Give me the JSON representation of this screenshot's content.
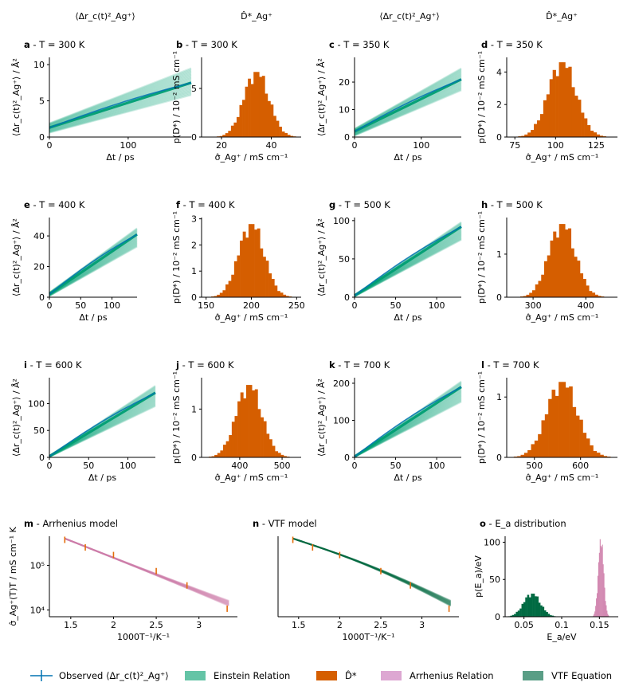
{
  "column_headers": [
    "⟨Δr_c(t)²_Ag⁺⟩",
    "D̂*_Ag⁺",
    "⟨Δr_c(t)²_Ag⁺⟩",
    "D̂*_Ag⁺"
  ],
  "colors": {
    "einstein": "#009e73",
    "observed": "#0072b2",
    "hist": "#d55e00",
    "arrhenius": "#cc79a7",
    "vtf": "#006a42",
    "arrhenius_point": "#e46c0a",
    "ea_vtf": "#006a42",
    "ea_arr": "#cc79a7"
  },
  "legend": {
    "observed": "Observed ⟨Δr_c(t)²_Ag⁺⟩",
    "einstein": "Einstein Relation",
    "dhat": "D̂*",
    "arrhenius": "Arrhenius Relation",
    "vtf": "VTF Equation"
  },
  "chart_data": [
    {
      "id": "a",
      "letter": "a",
      "title": " - T = 300 K",
      "type": "line",
      "xlabel": "Δt / ps",
      "ylabel": "⟨Δr_c(t)²_Ag⁺⟩ / Å²",
      "xlim": [
        0,
        180
      ],
      "ylim": [
        0,
        11
      ],
      "xticks": [
        0,
        100
      ],
      "yticks": [
        0,
        5,
        10
      ],
      "start": [
        1.3,
        0.6,
        1.9
      ],
      "end": [
        7.5,
        5.8,
        9.5
      ]
    },
    {
      "id": "b",
      "letter": "b",
      "title": " - T = 300 K",
      "type": "bar",
      "xlabel": "σ̂_Ag⁺ / mS cm⁻¹",
      "ylabel": "p(D*) / 10⁻² mS cm⁻¹",
      "xlim": [
        12,
        52
      ],
      "ylim": [
        0,
        8.2
      ],
      "xticks": [
        20,
        40
      ],
      "yticks": [
        0,
        5
      ],
      "center": 34,
      "sd": 5.0,
      "peak": 6.7
    },
    {
      "id": "c",
      "letter": "c",
      "title": " - T = 350 K",
      "type": "line",
      "xlabel": "Δt / ps",
      "ylabel": "⟨Δr_c(t)²_Ag⁺⟩ / Å²",
      "xlim": [
        0,
        160
      ],
      "ylim": [
        0,
        29
      ],
      "xticks": [
        0,
        100
      ],
      "yticks": [
        0,
        10,
        20
      ],
      "start": [
        2.0,
        0.5,
        3.0
      ],
      "end": [
        21,
        17,
        25
      ]
    },
    {
      "id": "d",
      "letter": "d",
      "title": " - T = 350 K",
      "type": "bar",
      "xlabel": "σ̂_Ag⁺ / mS cm⁻¹",
      "ylabel": "p(D*) / 10⁻² mS cm⁻¹",
      "xlim": [
        70,
        138
      ],
      "ylim": [
        0,
        4.9
      ],
      "xticks": [
        75,
        100,
        125
      ],
      "yticks": [
        0,
        2,
        4
      ],
      "center": 104,
      "sd": 8.5,
      "peak": 4.6
    },
    {
      "id": "e",
      "letter": "e",
      "title": " - T = 400 K",
      "type": "line",
      "xlabel": "Δt / ps",
      "ylabel": "⟨Δr_c(t)²_Ag⁺⟩ / Å²",
      "xlim": [
        0,
        140
      ],
      "ylim": [
        0,
        52
      ],
      "xticks": [
        0,
        50,
        100
      ],
      "yticks": [
        0,
        20,
        40
      ],
      "start": [
        2.0,
        0.8,
        3.0
      ],
      "end": [
        41,
        33,
        45
      ]
    },
    {
      "id": "f",
      "letter": "f",
      "title": " - T = 400 K",
      "type": "bar",
      "xlabel": "σ̂_Ag⁺ / mS cm⁻¹",
      "ylabel": "p(D*) / 10⁻² mS cm⁻¹",
      "xlim": [
        145,
        255
      ],
      "ylim": [
        0,
        3.05
      ],
      "xticks": [
        150,
        200,
        250
      ],
      "yticks": [
        0,
        1,
        2,
        3
      ],
      "center": 200,
      "sd": 14,
      "peak": 2.8
    },
    {
      "id": "g",
      "letter": "g",
      "title": " - T = 500 K",
      "type": "line",
      "xlabel": "Δt / ps",
      "ylabel": "⟨Δr_c(t)²_Ag⁺⟩ / Å²",
      "xlim": [
        0,
        130
      ],
      "ylim": [
        0,
        104
      ],
      "xticks": [
        0,
        50,
        100
      ],
      "yticks": [
        0,
        50,
        100
      ],
      "start": [
        2.0,
        1.0,
        3.0
      ],
      "end": [
        92,
        75,
        98
      ]
    },
    {
      "id": "h",
      "letter": "h",
      "title": " - T = 500 K",
      "type": "bar",
      "xlabel": "σ̂_Ag⁺ / mS cm⁻¹",
      "ylabel": "p(D*) / 10⁻² mS cm⁻¹",
      "xlim": [
        250,
        460
      ],
      "ylim": [
        0,
        1.85
      ],
      "xticks": [
        300,
        400
      ],
      "yticks": [
        0,
        1
      ],
      "center": 355,
      "sd": 25,
      "peak": 1.7
    },
    {
      "id": "i",
      "letter": "i",
      "title": " - T = 600 K",
      "type": "line",
      "xlabel": "Δt / ps",
      "ylabel": "⟨Δr_c(t)²_Ag⁺⟩ / Å²",
      "xlim": [
        0,
        135
      ],
      "ylim": [
        0,
        148
      ],
      "xticks": [
        0,
        50,
        100
      ],
      "yticks": [
        0,
        50,
        100
      ],
      "start": [
        2.0,
        1.0,
        3.0
      ],
      "end": [
        120,
        95,
        133
      ]
    },
    {
      "id": "j",
      "letter": "j",
      "title": " - T = 600 K",
      "type": "bar",
      "xlabel": "σ̂_Ag⁺ / mS cm⁻¹",
      "ylabel": "p(D*) / 10⁻² mS cm⁻¹",
      "xlim": [
        310,
        545
      ],
      "ylim": [
        0,
        1.65
      ],
      "xticks": [
        400,
        500
      ],
      "yticks": [
        0,
        1
      ],
      "center": 422,
      "sd": 30,
      "peak": 1.5
    },
    {
      "id": "k",
      "letter": "k",
      "title": " - T = 700 K",
      "type": "line",
      "xlabel": "Δt / ps",
      "ylabel": "⟨Δr_c(t)²_Ag⁺⟩ / Å²",
      "xlim": [
        0,
        130
      ],
      "ylim": [
        0,
        215
      ],
      "xticks": [
        0,
        50,
        100
      ],
      "yticks": [
        0,
        100,
        200
      ],
      "start": [
        2.0,
        1.0,
        3.0
      ],
      "end": [
        190,
        150,
        205
      ]
    },
    {
      "id": "l",
      "letter": "l",
      "title": " - T = 700 K",
      "type": "bar",
      "xlabel": "σ̂_Ag⁺ / mS cm⁻¹",
      "ylabel": "p(D*) / 10⁻² mS cm⁻¹",
      "xlim": [
        440,
        680
      ],
      "ylim": [
        0,
        1.32
      ],
      "xticks": [
        500,
        600
      ],
      "yticks": [
        0,
        1
      ],
      "center": 560,
      "sd": 33,
      "peak": 1.25
    },
    {
      "id": "m",
      "letter": "m",
      "title": " - Arrhenius model",
      "type": "scatter",
      "xlabel": "1000T⁻¹/K⁻¹",
      "ylabel": "σ̂_Ag⁺(T)T / mS cm⁻¹ K",
      "xlim": [
        1.25,
        3.45
      ],
      "ylim_log": [
        3.85,
        5.65
      ],
      "xticks": [
        1.5,
        2.0,
        2.5,
        3.0
      ],
      "yticks_log": [
        4,
        5
      ],
      "yticklabels": [
        "10⁴",
        "10⁵"
      ],
      "x": [
        1.43,
        1.67,
        2.0,
        2.5,
        2.86,
        3.33
      ],
      "y_log": [
        5.57,
        5.4,
        5.23,
        4.87,
        4.55,
        4.03
      ],
      "fit_start": [
        1.43,
        5.6
      ],
      "fit_end": [
        3.35,
        4.15
      ]
    },
    {
      "id": "n",
      "letter": "n",
      "title": " - VTF model",
      "type": "scatter",
      "xlabel": "1000T⁻¹/K⁻¹",
      "ylabel": "",
      "xlim": [
        1.25,
        3.45
      ],
      "ylim_log": [
        3.85,
        5.65
      ],
      "xticks": [
        1.5,
        2.0,
        2.5,
        3.0
      ],
      "yticks_log": [],
      "yticklabels": [],
      "x": [
        1.43,
        1.67,
        2.0,
        2.5,
        2.86,
        3.33
      ],
      "y_log": [
        5.57,
        5.4,
        5.23,
        4.87,
        4.55,
        4.03
      ],
      "fit_start": [
        1.43,
        5.6
      ],
      "fit_end": [
        3.35,
        4.15
      ]
    },
    {
      "id": "o",
      "letter": "o",
      "title": " - E_a distribution",
      "type": "bar",
      "xlabel": "E_a/eV",
      "ylabel": "p(E_a)/eV",
      "xlim": [
        0.025,
        0.175
      ],
      "ylim": [
        0,
        108
      ],
      "xticks": [
        0.05,
        0.1,
        0.15
      ],
      "yticks": [
        0,
        50,
        100
      ],
      "series": [
        {
          "center": 0.0605,
          "sd": 0.011,
          "peak": 31,
          "bin": 0.0025
        },
        {
          "center": 0.152,
          "sd": 0.0035,
          "peak": 104,
          "bin": 0.001
        }
      ]
    }
  ]
}
